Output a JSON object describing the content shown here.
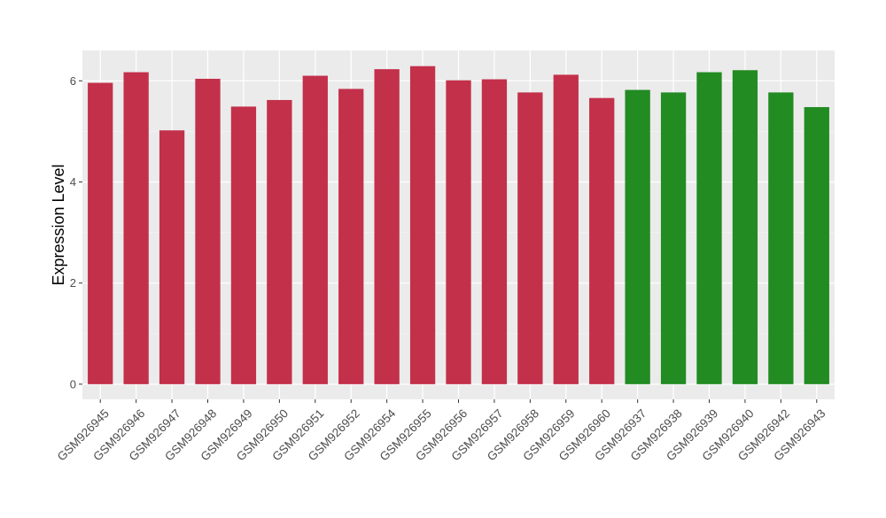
{
  "chart_data": {
    "type": "bar",
    "title": "",
    "xlabel": "",
    "ylabel": "Expression Level",
    "ylim": [
      -0.3,
      6.6
    ],
    "yticks": [
      0,
      2,
      4,
      6
    ],
    "ytick_labels": [
      "0",
      "2",
      "4",
      "6"
    ],
    "grid": true,
    "legend": "none",
    "categories": [
      "GSM926945",
      "GSM926946",
      "GSM926947",
      "GSM926948",
      "GSM926949",
      "GSM926950",
      "GSM926951",
      "GSM926952",
      "GSM926954",
      "GSM926955",
      "GSM926956",
      "GSM926957",
      "GSM926958",
      "GSM926959",
      "GSM926960",
      "GSM926937",
      "GSM926938",
      "GSM926939",
      "GSM926940",
      "GSM926942",
      "GSM926943"
    ],
    "values": [
      5.96,
      6.17,
      5.02,
      6.04,
      5.49,
      5.62,
      6.1,
      5.84,
      6.23,
      6.29,
      6.01,
      6.03,
      5.77,
      6.12,
      5.66,
      5.82,
      5.77,
      6.17,
      6.21,
      5.77,
      5.48
    ],
    "groups": [
      "red",
      "red",
      "red",
      "red",
      "red",
      "red",
      "red",
      "red",
      "red",
      "red",
      "red",
      "red",
      "red",
      "red",
      "red",
      "green",
      "green",
      "green",
      "green",
      "green",
      "green"
    ]
  },
  "colors": {
    "red": "#c3304a",
    "green": "#228b22",
    "panel_background": "#ebebeb",
    "grid_major": "#ffffff",
    "grid_minor": "#f5f5f5",
    "tick": "#333333"
  }
}
